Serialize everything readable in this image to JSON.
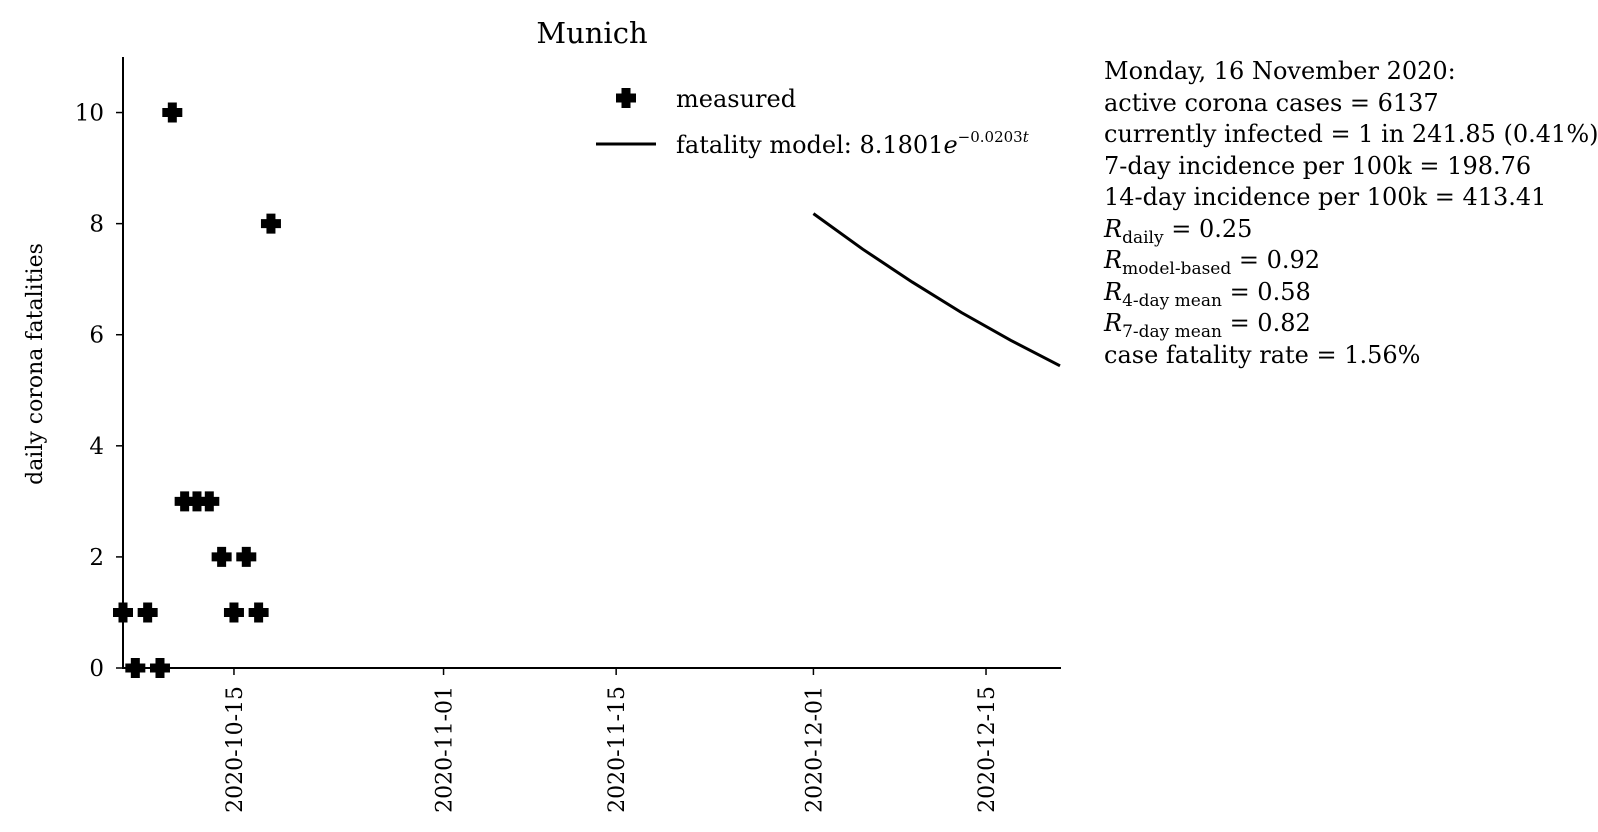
{
  "chart_data": {
    "type": "scatter",
    "title": "Munich",
    "xlabel": "",
    "ylabel": "daily corona fatalities",
    "xlim": [
      "2020-10-06",
      "2020-12-21"
    ],
    "ylim": [
      0,
      11
    ],
    "yticks": [
      0,
      2,
      4,
      6,
      8,
      10
    ],
    "xticks": [
      "2020-10-15",
      "2020-11-01",
      "2020-11-15",
      "2020-12-01",
      "2020-12-15"
    ],
    "grid": false,
    "legend_position": "top-right",
    "series": [
      {
        "name": "measured",
        "kind": "scatter",
        "marker": "plus",
        "color": "#000000",
        "points": [
          {
            "x": "2020-10-06",
            "y": 1
          },
          {
            "x": "2020-10-07",
            "y": 0
          },
          {
            "x": "2020-10-08",
            "y": 1
          },
          {
            "x": "2020-10-09",
            "y": 0
          },
          {
            "x": "2020-10-10",
            "y": 10
          },
          {
            "x": "2020-10-11",
            "y": 3
          },
          {
            "x": "2020-10-12",
            "y": 3
          },
          {
            "x": "2020-10-13",
            "y": 3
          },
          {
            "x": "2020-10-14",
            "y": 2
          },
          {
            "x": "2020-10-15",
            "y": 1
          },
          {
            "x": "2020-10-16",
            "y": 2
          },
          {
            "x": "2020-10-17",
            "y": 1
          },
          {
            "x": "2020-10-18",
            "y": 8
          }
        ]
      },
      {
        "name": "fatality model: 8.1801e^{-0.0203t}",
        "kind": "line",
        "color": "#000000",
        "points": [
          {
            "x": "2020-12-01",
            "y": 8.18
          },
          {
            "x": "2020-12-05",
            "y": 7.54
          },
          {
            "x": "2020-12-09",
            "y": 6.95
          },
          {
            "x": "2020-12-13",
            "y": 6.4
          },
          {
            "x": "2020-12-17",
            "y": 5.9
          },
          {
            "x": "2020-12-21",
            "y": 5.44
          }
        ]
      }
    ],
    "legend": {
      "measured_label": "measured",
      "model_label_prefix": "fatality model: 8.1801",
      "model_base": "e",
      "model_exponent": "−0.0203",
      "model_exponent_var": "t"
    }
  },
  "info": {
    "date_line": "Monday, 16 November 2020:",
    "active_cases": "active corona cases = 6137",
    "currently_infected": "currently infected = 1 in 241.85 (0.41%)",
    "incidence_7": "7-day incidence per 100k = 198.76",
    "incidence_14": "14-day incidence per 100k = 413.41",
    "r_daily": {
      "symbol": "R",
      "sub": "daily",
      "value": " = 0.25"
    },
    "r_model": {
      "symbol": "R",
      "sub": "model-based",
      "value": " = 0.92"
    },
    "r_4day": {
      "symbol": "R",
      "sub": "4-day mean",
      "value": " = 0.58"
    },
    "r_7day": {
      "symbol": "R",
      "sub": "7-day mean",
      "value": " = 0.82"
    },
    "cfr": "case fatality rate = 1.56%"
  }
}
